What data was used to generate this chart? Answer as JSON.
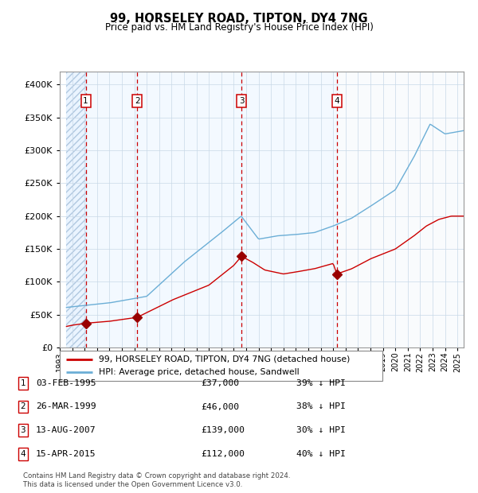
{
  "title": "99, HORSELEY ROAD, TIPTON, DY4 7NG",
  "subtitle": "Price paid vs. HM Land Registry's House Price Index (HPI)",
  "transactions": [
    {
      "num": 1,
      "date_str": "03-FEB-1995",
      "date_x": 1995.09,
      "price": 37000,
      "pct": "39%",
      "dir": "↓"
    },
    {
      "num": 2,
      "date_str": "26-MAR-1999",
      "date_x": 1999.23,
      "price": 46000,
      "pct": "38%",
      "dir": "↓"
    },
    {
      "num": 3,
      "date_str": "13-AUG-2007",
      "date_x": 2007.62,
      "price": 139000,
      "pct": "30%",
      "dir": "↓"
    },
    {
      "num": 4,
      "date_str": "15-APR-2015",
      "date_x": 2015.29,
      "price": 112000,
      "pct": "40%",
      "dir": "↓"
    }
  ],
  "hpi_color": "#6baed6",
  "price_color": "#cc0000",
  "marker_color": "#990000",
  "vline_color": "#cc0000",
  "ylim": [
    0,
    420000
  ],
  "yticks": [
    0,
    50000,
    100000,
    150000,
    200000,
    250000,
    300000,
    350000,
    400000
  ],
  "xlim_start": 1993.5,
  "xlim_end": 2025.5,
  "footer": "Contains HM Land Registry data © Crown copyright and database right 2024.\nThis data is licensed under the Open Government Licence v3.0.",
  "legend_label_red": "99, HORSELEY ROAD, TIPTON, DY4 7NG (detached house)",
  "legend_label_blue": "HPI: Average price, detached house, Sandwell"
}
